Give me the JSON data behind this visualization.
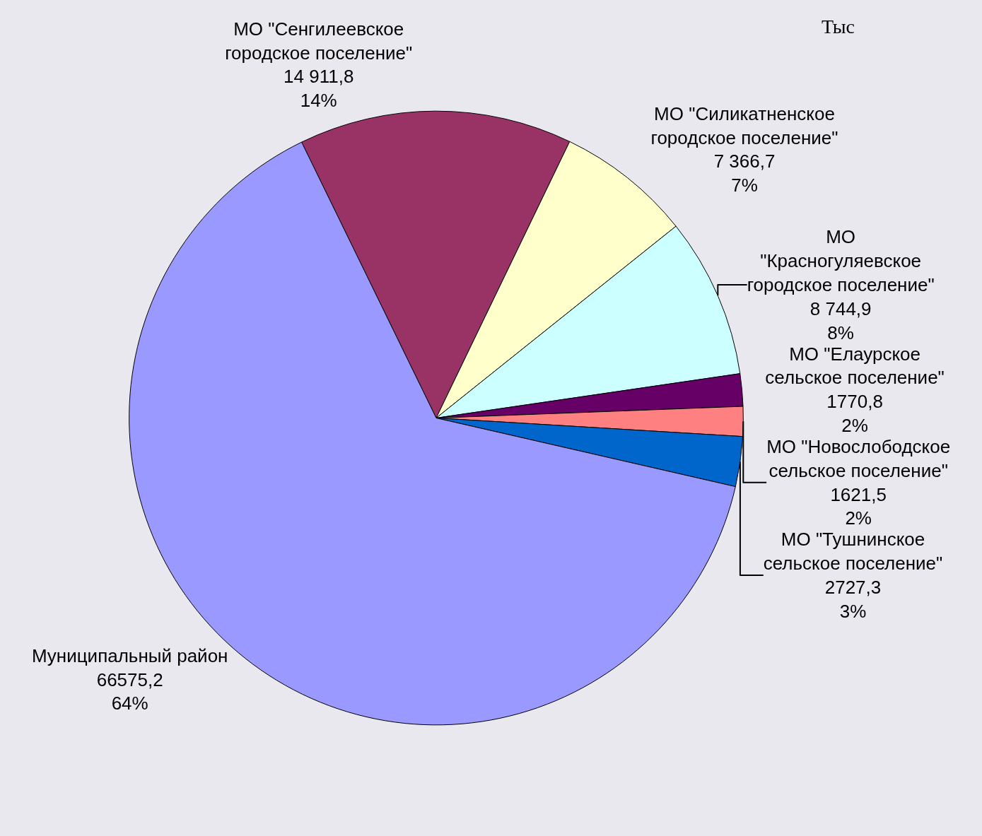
{
  "chart_data": {
    "type": "pie",
    "categories": [
      "МО \"Сенгилеевское\nгородское поселение\"",
      "МО \"Силикатненское\nгородское поселение\"",
      "МО\n\"Красногуляевское\nгородское поселение\"",
      "МО \"Елаурское\nсельское поселение\"",
      "МО \"Новослободское\nсельское поселение\"",
      "МО \"Тушнинское\nсельское поселение\"",
      "Муниципальный район"
    ],
    "values": [
      14911.8,
      7366.7,
      8744.9,
      1770.8,
      1621.5,
      2727.3,
      66575.2
    ],
    "value_labels": [
      "14 911,8\n14%",
      "7 366,7\n7%",
      "8 744,9\n8%",
      "1770,8\n2%",
      "1621,5\n2%",
      "2727,3\n3%",
      "66575,2\n64%"
    ],
    "colors": [
      "#993366",
      "#ffffcc",
      "#ccffff",
      "#660066",
      "#ff8080",
      "#0066cc",
      "#9999ff"
    ],
    "annotations": [
      "Тыс"
    ],
    "legend": false
  }
}
